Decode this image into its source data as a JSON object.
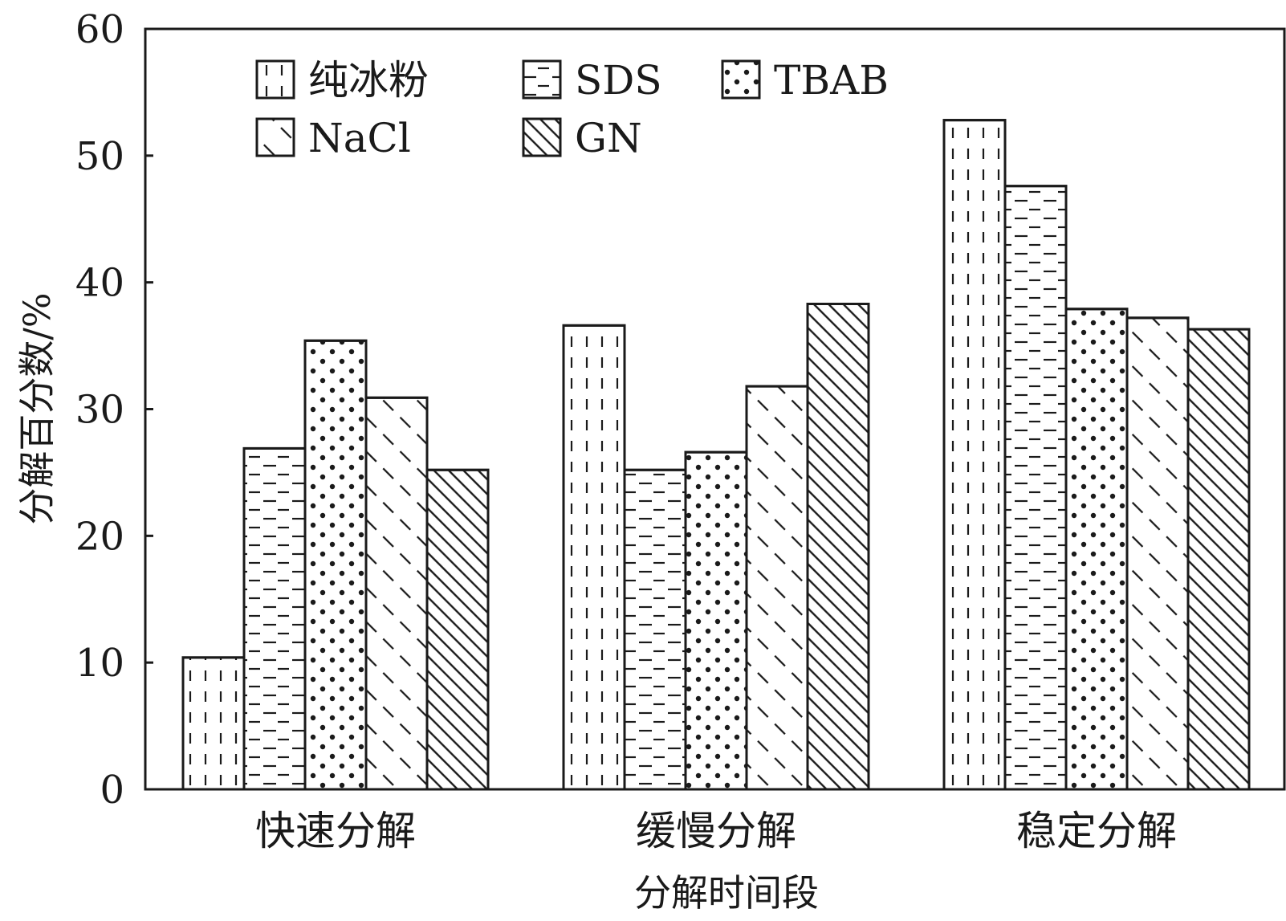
{
  "chart_data": {
    "type": "bar",
    "categories": [
      "快速分解",
      "缓慢分解",
      "稳定分解"
    ],
    "series": [
      {
        "name": "纯冰粉",
        "values": [
          10.4,
          36.6,
          52.8
        ],
        "pattern": "vertical-dashes"
      },
      {
        "name": "SDS",
        "values": [
          26.9,
          25.2,
          47.6
        ],
        "pattern": "horizontal-dashes"
      },
      {
        "name": "TBAB",
        "values": [
          35.4,
          26.6,
          37.9
        ],
        "pattern": "dots"
      },
      {
        "name": "NaCl",
        "values": [
          30.9,
          31.8,
          37.2
        ],
        "pattern": "sparse-diagonal"
      },
      {
        "name": "GN",
        "values": [
          25.2,
          38.3,
          36.3
        ],
        "pattern": "dense-diagonal"
      }
    ],
    "xlabel": "分解时间段",
    "ylabel": "分解百分数/%",
    "ylim": [
      0,
      60
    ],
    "yticks": [
      "0",
      "10",
      "20",
      "30",
      "40",
      "50",
      "60"
    ],
    "grid": false,
    "legend_position": "top-left"
  },
  "colors": {
    "stroke": "#1a1a1a",
    "fill": "#ffffff"
  }
}
